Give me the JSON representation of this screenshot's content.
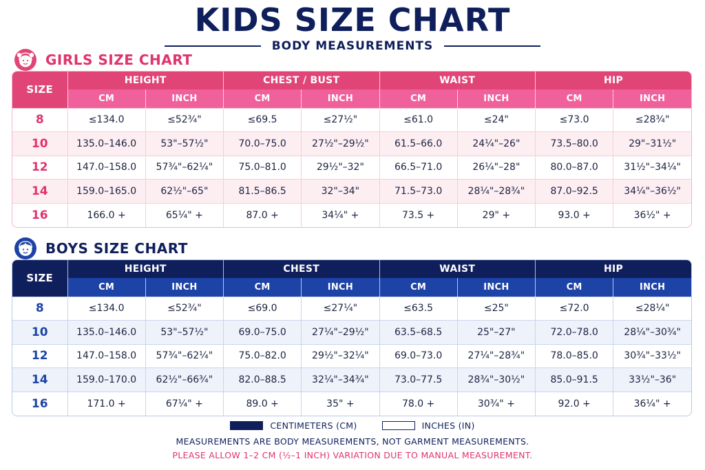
{
  "title": "KIDS SIZE CHART",
  "subtitle": "BODY MEASUREMENTS",
  "girls": {
    "title": "GIRLS SIZE CHART",
    "icon": "girl-face-icon",
    "size_header": "SIZE",
    "groups": [
      "HEIGHT",
      "CHEST / BUST",
      "WAIST",
      "HIP"
    ],
    "units": [
      "CM",
      "INCH",
      "CM",
      "INCH",
      "CM",
      "INCH",
      "CM",
      "INCH"
    ],
    "rows": [
      [
        "8",
        "≤134.0",
        "≤52¾\"",
        "≤69.5",
        "≤27½\"",
        "≤61.0",
        "≤24\"",
        "≤73.0",
        "≤28¾\""
      ],
      [
        "10",
        "135.0–146.0",
        "53\"–57½\"",
        "70.0–75.0",
        "27½\"–29½\"",
        "61.5–66.0",
        "24¼\"–26\"",
        "73.5–80.0",
        "29\"–31½\""
      ],
      [
        "12",
        "147.0–158.0",
        "57¾\"–62¼\"",
        "75.0–81.0",
        "29½\"–32\"",
        "66.5–71.0",
        "26¼\"–28\"",
        "80.0–87.0",
        "31½\"–34¼\""
      ],
      [
        "14",
        "159.0–165.0",
        "62½\"–65\"",
        "81.5–86.5",
        "32\"–34\"",
        "71.5–73.0",
        "28¼\"–28¾\"",
        "87.0–92.5",
        "34¼\"–36½\""
      ],
      [
        "16",
        "166.0 +",
        "65¼\" +",
        "87.0 +",
        "34¼\" +",
        "73.5 +",
        "29\" +",
        "93.0 +",
        "36½\" +"
      ]
    ],
    "colors": {
      "header": "#e14577",
      "subheader": "#f0609a",
      "accent": "#e0336b"
    }
  },
  "boys": {
    "title": "BOYS SIZE CHART",
    "icon": "boy-face-icon",
    "size_header": "SIZE",
    "groups": [
      "HEIGHT",
      "CHEST",
      "WAIST",
      "HIP"
    ],
    "units": [
      "CM",
      "INCH",
      "CM",
      "INCH",
      "CM",
      "INCH",
      "CM",
      "INCH"
    ],
    "rows": [
      [
        "8",
        "≤134.0",
        "≤52¾\"",
        "≤69.0",
        "≤27¼\"",
        "≤63.5",
        "≤25\"",
        "≤72.0",
        "≤28¼\""
      ],
      [
        "10",
        "135.0–146.0",
        "53\"–57½\"",
        "69.0–75.0",
        "27¼\"–29½\"",
        "63.5–68.5",
        "25\"–27\"",
        "72.0–78.0",
        "28¼\"–30¾\""
      ],
      [
        "12",
        "147.0–158.0",
        "57¾\"–62¼\"",
        "75.0–82.0",
        "29½\"–32¼\"",
        "69.0–73.0",
        "27¼\"–28¾\"",
        "78.0–85.0",
        "30¾\"–33½\""
      ],
      [
        "14",
        "159.0–170.0",
        "62½\"–66¾\"",
        "82.0–88.5",
        "32¼\"–34¾\"",
        "73.0–77.5",
        "28¾\"–30½\"",
        "85.0–91.5",
        "33½\"–36\""
      ],
      [
        "16",
        "171.0 +",
        "67¼\" +",
        "89.0 +",
        "35\" +",
        "78.0 +",
        "30¾\" +",
        "92.0 +",
        "36¼\" +"
      ]
    ],
    "colors": {
      "header": "#0f1f5c",
      "subheader": "#1d43a6",
      "accent": "#1d43a6"
    }
  },
  "legend": {
    "cm_label": "CENTIMETERS (CM)",
    "in_label": "INCHES (IN)"
  },
  "notes": [
    "MEASUREMENTS ARE BODY MEASUREMENTS, NOT GARMENT MEASUREMENTS.",
    "PLEASE ALLOW 1–2 CM (½–1 INCH) VARIATION DUE TO MANUAL MEASUREMENT."
  ]
}
